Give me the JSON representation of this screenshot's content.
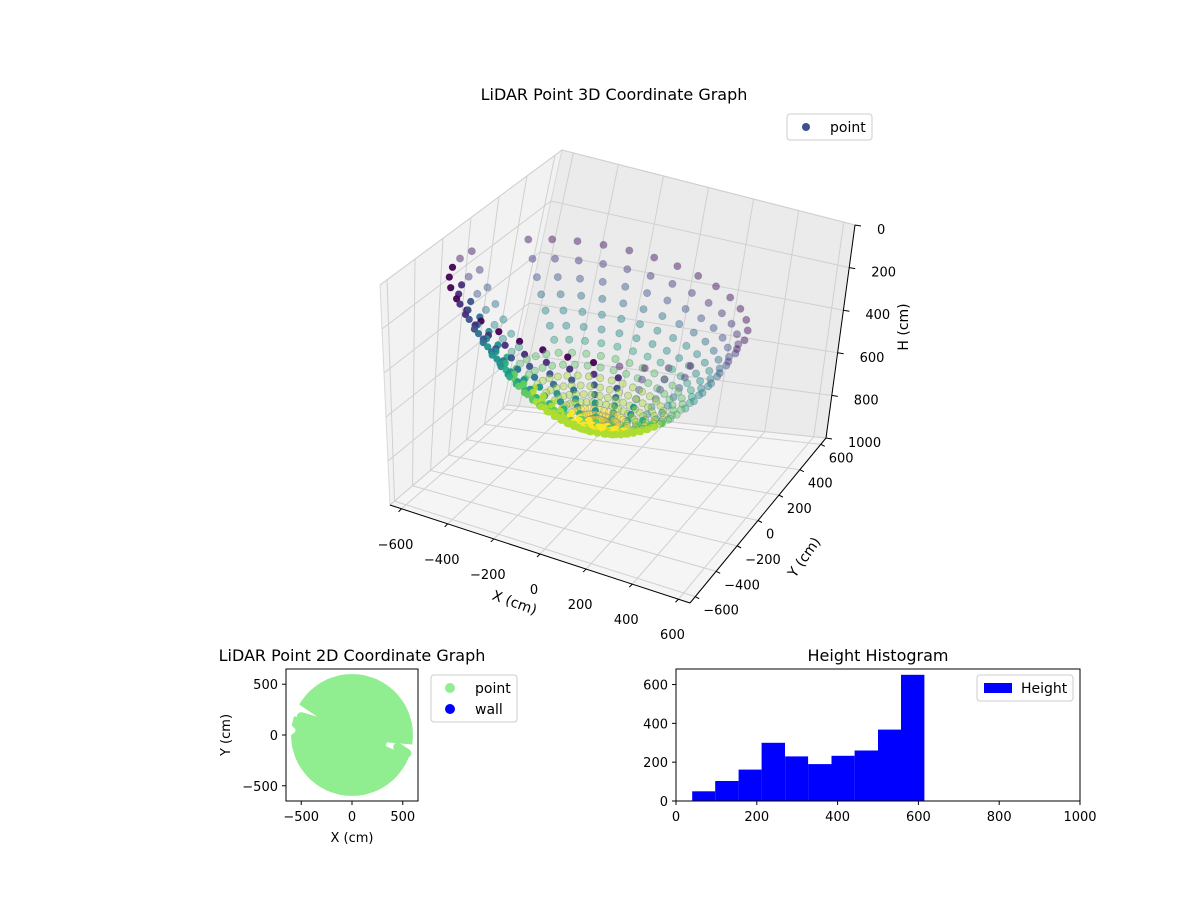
{
  "chart_data": [
    {
      "type": "scatter",
      "projection": "3d",
      "title": "LiDAR Point 3D Coordinate Graph",
      "xlabel": "X (cm)",
      "ylabel": "Y (cm)",
      "zlabel": "H (cm)",
      "xlim": [
        -650,
        650
      ],
      "ylim": [
        -650,
        650
      ],
      "zlim": [
        1000,
        0
      ],
      "x_ticks": [
        -600,
        -400,
        -200,
        0,
        200,
        400,
        600
      ],
      "y_ticks": [
        -600,
        -400,
        -200,
        0,
        200,
        400,
        600
      ],
      "z_ticks": [
        0,
        200,
        400,
        600,
        800,
        1000
      ],
      "colormap": "viridis",
      "legend": {
        "placement": "top-right",
        "entries": [
          {
            "label": "point",
            "color": "#3b528b"
          }
        ]
      },
      "structure": "bowl-shaped point cloud of radial scan lines from the scanner; lowest points near the centre at H ≈ 600",
      "grid": true
    },
    {
      "type": "scatter",
      "title": "LiDAR Point 2D Coordinate Graph",
      "xlabel": "X (cm)",
      "ylabel": "Y (cm)",
      "xlim": [
        -650,
        650
      ],
      "ylim": [
        -650,
        650
      ],
      "x_ticks": [
        -500,
        0,
        500
      ],
      "y_ticks": [
        -500,
        0,
        500
      ],
      "series": [
        {
          "name": "point",
          "color": "#90ee90",
          "shape": "disc of radius ~600 with two narrow slots near the left and right edges"
        },
        {
          "name": "wall",
          "color": "#0000ff",
          "points": []
        }
      ],
      "legend": {
        "placement": "outside-right",
        "entries": [
          {
            "label": "point",
            "color": "#90ee90"
          },
          {
            "label": "wall",
            "color": "#0000ff"
          }
        ]
      }
    },
    {
      "type": "bar",
      "title": "Height Histogram",
      "xlim": [
        0,
        1000
      ],
      "ylim": [
        0,
        680
      ],
      "x_ticks": [
        0,
        200,
        400,
        600,
        800,
        1000
      ],
      "y_ticks": [
        0,
        200,
        400,
        600
      ],
      "bins": [
        [
          40,
          97
        ],
        [
          97,
          155
        ],
        [
          155,
          212
        ],
        [
          212,
          270
        ],
        [
          270,
          327
        ],
        [
          327,
          385
        ],
        [
          385,
          442
        ],
        [
          442,
          500
        ],
        [
          500,
          557
        ],
        [
          557,
          615
        ]
      ],
      "values": [
        50,
        103,
        162,
        300,
        230,
        190,
        233,
        260,
        368,
        650
      ],
      "series": [
        {
          "name": "Height",
          "color": "#0000ff"
        }
      ],
      "legend": {
        "placement": "top-right",
        "entries": [
          {
            "label": "Height",
            "color": "#0000ff"
          }
        ]
      }
    }
  ]
}
